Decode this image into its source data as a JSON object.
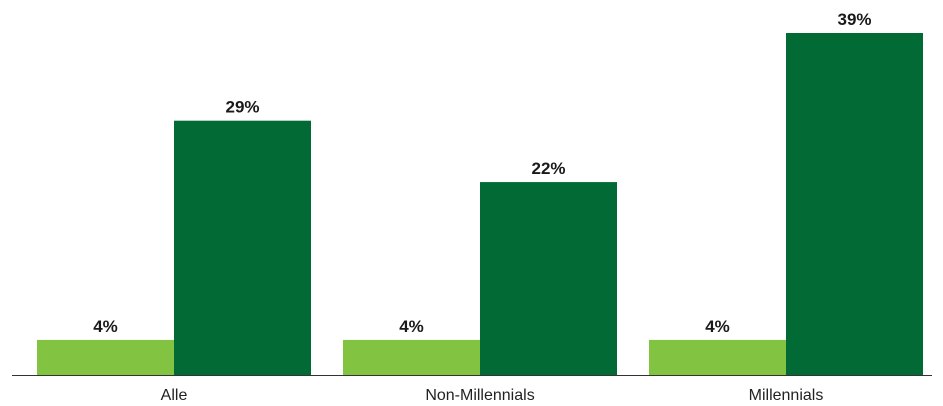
{
  "chart_data": {
    "type": "bar",
    "title": "",
    "xlabel": "",
    "ylabel": "",
    "categories": [
      "Alle",
      "Non-Millennials",
      "Millennials"
    ],
    "series": [
      {
        "values": [
          4,
          4,
          4
        ],
        "labels": [
          "4%",
          "4%",
          "4%"
        ],
        "color": "#82c341"
      },
      {
        "values": [
          29,
          22,
          39
        ],
        "labels": [
          "29%",
          "22%",
          "39%"
        ],
        "color": "#026b35"
      }
    ],
    "ylim": [
      0,
      39
    ],
    "grid": false,
    "legend": "none",
    "axis_color": "#333333"
  }
}
